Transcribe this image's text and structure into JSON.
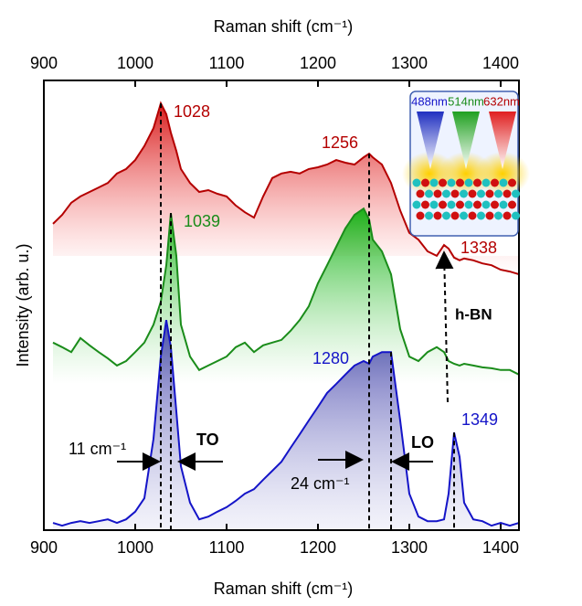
{
  "chart_data": {
    "type": "line",
    "x_label": "Raman shift (cm⁻¹)",
    "y_label": "Intensity (arb. u.)",
    "x": [
      910,
      920,
      930,
      940,
      950,
      960,
      970,
      980,
      990,
      1000,
      1010,
      1020,
      1028,
      1034,
      1039,
      1045,
      1050,
      1060,
      1070,
      1080,
      1090,
      1100,
      1110,
      1120,
      1130,
      1140,
      1150,
      1160,
      1170,
      1180,
      1190,
      1200,
      1210,
      1220,
      1230,
      1240,
      1250,
      1256,
      1260,
      1270,
      1280,
      1290,
      1300,
      1310,
      1320,
      1330,
      1338,
      1343,
      1349,
      1355,
      1360,
      1370,
      1380,
      1390,
      1400,
      1410,
      1420
    ],
    "series": [
      {
        "name": "632nm",
        "color": "#b40000",
        "values": [
          68.1,
          70.1,
          72.8,
          74.2,
          75.2,
          76.2,
          77.2,
          79.3,
          80.3,
          82.3,
          85.4,
          89.4,
          94.9,
          92.5,
          88.4,
          84.3,
          80.3,
          77.2,
          75.2,
          75.6,
          74.8,
          74.2,
          72.2,
          70.7,
          69.5,
          74.2,
          78.3,
          79.3,
          79.7,
          79.3,
          80.3,
          80.7,
          81.3,
          82.3,
          81.7,
          81.3,
          82.9,
          83.7,
          82.9,
          81.3,
          77.2,
          71.1,
          66.1,
          64.6,
          62.0,
          61.0,
          63.4,
          62.6,
          60.6,
          60.0,
          60.4,
          60.0,
          59.3,
          58.9,
          57.9,
          57.5,
          56.9
        ]
      },
      {
        "name": "514nm",
        "color": "#1a8c1a",
        "values": [
          41.7,
          40.7,
          39.6,
          42.7,
          41.1,
          39.6,
          38.2,
          36.6,
          37.6,
          39.6,
          41.7,
          45.7,
          50.8,
          58.9,
          70.5,
          61.0,
          45.7,
          38.6,
          35.6,
          36.6,
          37.6,
          38.6,
          40.7,
          41.7,
          39.6,
          41.1,
          41.7,
          42.3,
          44.3,
          46.7,
          49.8,
          54.9,
          58.9,
          63.0,
          67.1,
          70.1,
          71.5,
          69.1,
          64.6,
          62.0,
          56.9,
          44.7,
          38.6,
          37.6,
          39.6,
          40.7,
          39.6,
          37.6,
          37.0,
          36.6,
          37.0,
          36.6,
          36.2,
          36.0,
          35.6,
          35.6,
          34.6
        ]
      },
      {
        "name": "488nm",
        "color": "#1414c8",
        "values": [
          1.6,
          1.0,
          1.6,
          2.0,
          1.6,
          2.0,
          2.4,
          1.6,
          2.4,
          4.1,
          7.1,
          20.3,
          38.6,
          46.7,
          40.7,
          26.4,
          14.2,
          6.1,
          2.4,
          3.0,
          4.1,
          5.1,
          6.5,
          8.1,
          9.1,
          11.2,
          13.2,
          15.2,
          18.3,
          21.3,
          24.4,
          27.4,
          30.5,
          32.5,
          34.6,
          36.6,
          37.6,
          37.0,
          38.6,
          39.6,
          39.6,
          24.4,
          8.1,
          3.0,
          2.0,
          2.0,
          2.4,
          8.1,
          21.7,
          16.3,
          6.1,
          2.4,
          2.0,
          1.0,
          1.6,
          1.0,
          1.6
        ]
      }
    ],
    "xlim": [
      900,
      1420
    ],
    "ylim": [
      0,
      100
    ],
    "xticks": [
      900,
      1000,
      1100,
      1200,
      1300,
      1400
    ],
    "annotations": [
      {
        "text": "1028",
        "x": 1028,
        "y": 94.9,
        "color": "#b40000"
      },
      {
        "text": "1256",
        "x": 1256,
        "y": 83.7,
        "color": "#b40000"
      },
      {
        "text": "1039",
        "x": 1039,
        "y": 70.5,
        "color": "#1a8c1a"
      },
      {
        "text": "1338",
        "x": 1338,
        "y": 63.4,
        "color": "#b40000"
      },
      {
        "text": "1280",
        "x": 1280,
        "y": 39.6,
        "color": "#1414c8"
      },
      {
        "text": "1349",
        "x": 1349,
        "y": 21.7,
        "color": "#1414c8"
      }
    ],
    "notes": [
      "11 cm⁻¹",
      "TO",
      "24 cm⁻¹",
      "LO",
      "h-BN"
    ]
  }
}
